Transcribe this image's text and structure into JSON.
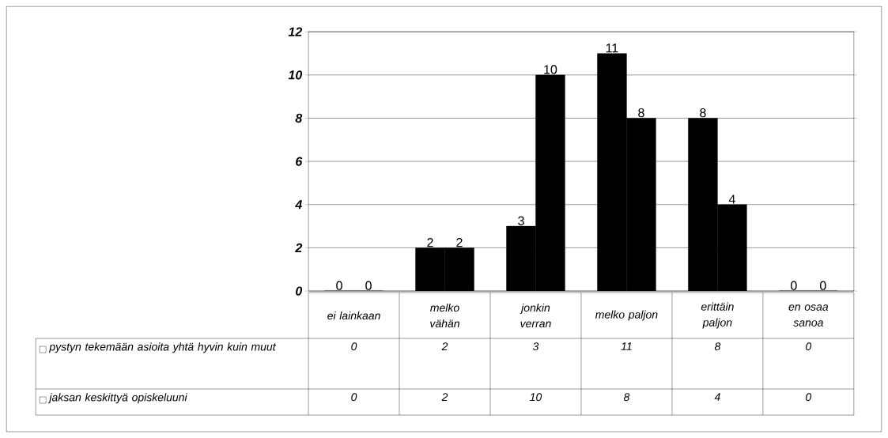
{
  "chart_data": {
    "type": "bar",
    "categories": [
      "ei lainkaan",
      "melko vähän",
      "jonkin verran",
      "melko paljon",
      "erittäin paljon",
      "en osaa sanoa"
    ],
    "series": [
      {
        "name": "pystyn tekemään asioita yhtä hyvin kuin muut",
        "color": "#000000",
        "values": [
          0,
          2,
          3,
          11,
          8,
          0
        ]
      },
      {
        "name": "jaksan keskittyä opiskeluuni",
        "color": "#000000",
        "values": [
          0,
          2,
          10,
          8,
          4,
          0
        ]
      }
    ],
    "annotations": [
      "0",
      {
        "text": "2",
        "y": 2
      },
      {
        "text": "3",
        "y": 3
      },
      {
        "text": "11",
        "y": 11
      },
      {
        "text": "8",
        "y": 8
      },
      "0",
      "0",
      {
        "text": "2",
        "y": 2
      },
      {
        "text": "10",
        "y": 10
      },
      {
        "text": "8",
        "y": 8
      },
      {
        "text": "4",
        "y": 4
      },
      "0"
    ],
    "ylim": [
      0,
      12
    ],
    "yticks": [
      0,
      2,
      4,
      6,
      8,
      10,
      12
    ],
    "grid": "y",
    "data_labels": true,
    "legend": "bottom"
  }
}
